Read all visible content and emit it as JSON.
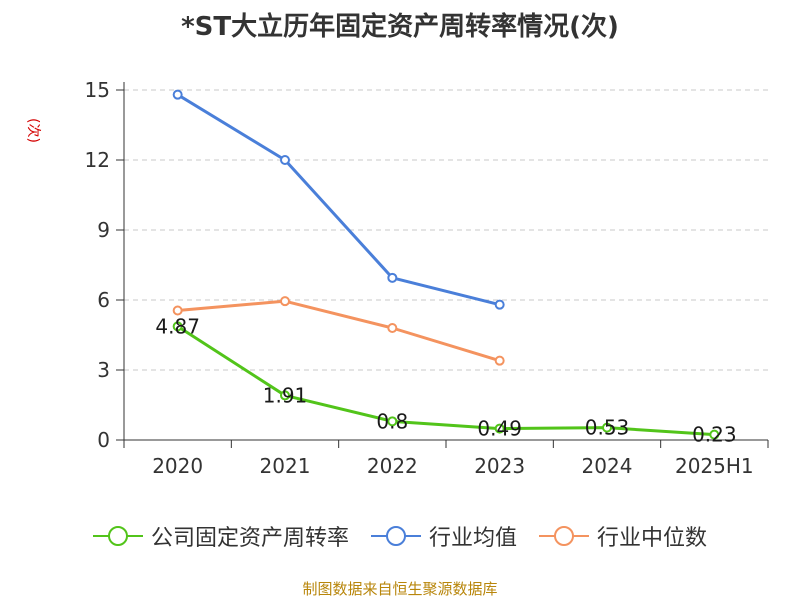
{
  "chart_data": {
    "type": "line",
    "title": "*ST大立历年固定资产周转率情况(次)",
    "ylabel": "(次)",
    "categories": [
      "2020",
      "2021",
      "2022",
      "2023",
      "2024",
      "2025H1"
    ],
    "yticks": [
      0,
      3,
      6,
      9,
      12,
      15
    ],
    "ylim": [
      0,
      15
    ],
    "grid": true,
    "legend_position": "bottom",
    "series": [
      {
        "name": "公司固定资产周转率",
        "color": "#52c41a",
        "values": [
          4.87,
          1.91,
          0.8,
          0.49,
          0.53,
          0.23
        ],
        "labels": [
          "4.87",
          "1.91",
          "0.8",
          "0.49",
          "0.53",
          "0.23"
        ]
      },
      {
        "name": "行业均值",
        "color": "#4a7fd9",
        "values": [
          14.8,
          12.0,
          6.95,
          5.8,
          null,
          null
        ]
      },
      {
        "name": "行业中位数",
        "color": "#f4935f",
        "values": [
          5.55,
          5.95,
          4.8,
          3.4,
          null,
          null
        ]
      }
    ]
  },
  "source": "制图数据来自恒生聚源数据库"
}
